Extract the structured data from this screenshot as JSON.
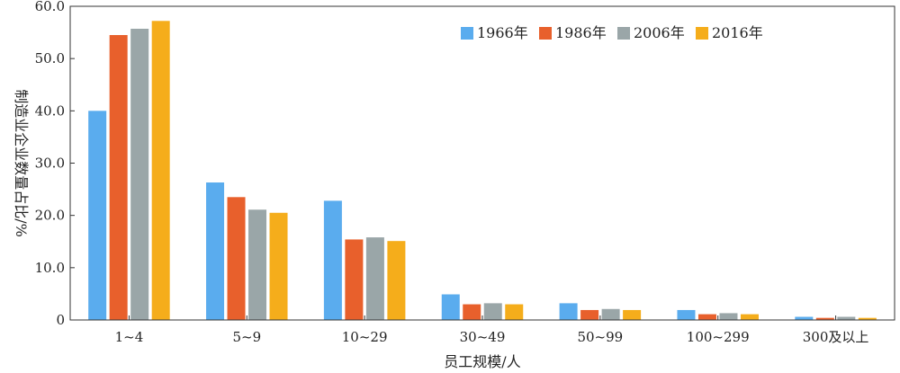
{
  "chart_data": {
    "type": "bar",
    "categories": [
      "1~4",
      "5~9",
      "10~29",
      "30~49",
      "50~99",
      "100~299",
      "300及以上"
    ],
    "series": [
      {
        "name": "1966年",
        "color": "#5aacee",
        "values": [
          40.0,
          26.3,
          22.8,
          4.9,
          3.2,
          1.9,
          0.6
        ]
      },
      {
        "name": "1986年",
        "color": "#e8602c",
        "values": [
          54.5,
          23.5,
          15.4,
          3.0,
          1.9,
          1.1,
          0.4
        ]
      },
      {
        "name": "2006年",
        "color": "#9aa6a8",
        "values": [
          55.7,
          21.1,
          15.8,
          3.2,
          2.1,
          1.3,
          0.6
        ]
      },
      {
        "name": "2016年",
        "color": "#f5ad1b",
        "values": [
          57.2,
          20.5,
          15.1,
          3.0,
          1.9,
          1.1,
          0.4
        ]
      }
    ],
    "xlabel": "员工规模/人",
    "ylabel": "制造业企业数量占比/%",
    "ylim": [
      0,
      60
    ],
    "yticks": [
      "0",
      "10.0",
      "20.0",
      "30.0",
      "40.0",
      "50.0",
      "60.0"
    ],
    "grid": false,
    "legend_position": "top-right"
  }
}
